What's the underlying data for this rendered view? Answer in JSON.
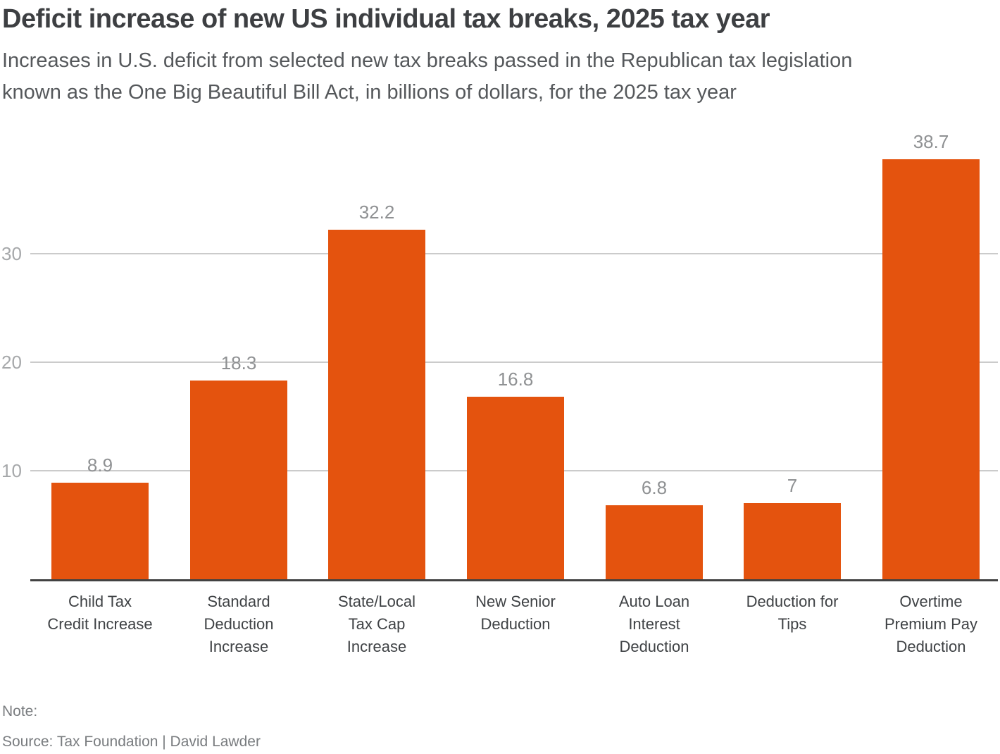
{
  "header": {
    "title": "Deficit increase of new US individual tax breaks, 2025 tax year",
    "subtitle": "Increases in U.S. deficit from selected new tax breaks passed in the Republican tax legislation\nknown as the One Big Beautiful Bill Act, in billions of dollars, for the 2025 tax year"
  },
  "chart_data": {
    "type": "bar",
    "title": "Deficit increase of new US individual tax breaks, 2025 tax year",
    "categories": [
      "Child Tax\nCredit Increase",
      "Standard\nDeduction\nIncrease",
      "State/Local\nTax Cap\nIncrease",
      "New Senior\nDeduction",
      "Auto Loan\nInterest\nDeduction",
      "Deduction for\nTips",
      "Overtime\nPremium Pay\nDeduction"
    ],
    "values": [
      8.9,
      18.3,
      32.2,
      16.8,
      6.8,
      7,
      38.7
    ],
    "value_labels": [
      "8.9",
      "18.3",
      "32.2",
      "16.8",
      "6.8",
      "7",
      "38.7"
    ],
    "xlabel": "",
    "ylabel": "",
    "yticks": [
      10,
      20,
      30
    ],
    "ylim": [
      0,
      40
    ],
    "grid": "horizontal-only",
    "legend": "none",
    "units": "billions of dollars",
    "bar_color": "#e4530e",
    "grid_color": "#cbcbcb",
    "axis_color": "#424242",
    "tick_label_color": "#a6a8aa",
    "value_label_color": "#8f9193"
  },
  "footer": {
    "note": "Note:",
    "source": "Source: Tax Foundation  | David Lawder"
  }
}
